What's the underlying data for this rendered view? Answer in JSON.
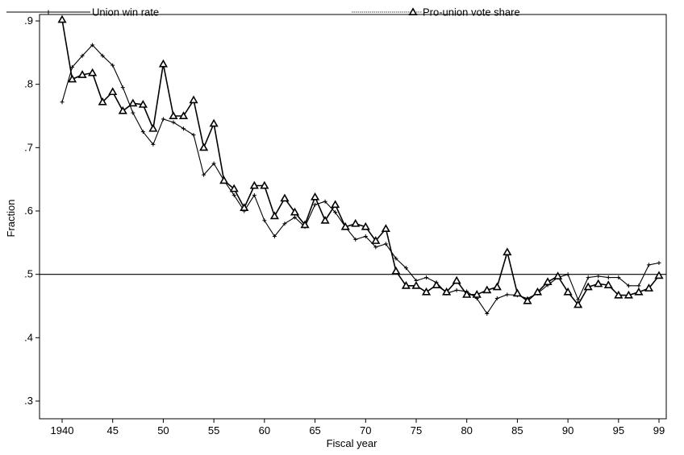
{
  "chart_data": {
    "type": "line",
    "xlabel": "Fiscal year",
    "ylabel": "Fraction",
    "xlim": [
      1940,
      1999
    ],
    "ylim": [
      0.3,
      0.9
    ],
    "x_ticks": [
      {
        "value": 1940,
        "label": "1940"
      },
      {
        "value": 1945,
        "label": "45"
      },
      {
        "value": 1950,
        "label": "50"
      },
      {
        "value": 1955,
        "label": "55"
      },
      {
        "value": 1960,
        "label": "60"
      },
      {
        "value": 1965,
        "label": "65"
      },
      {
        "value": 1970,
        "label": "70"
      },
      {
        "value": 1975,
        "label": "75"
      },
      {
        "value": 1980,
        "label": "80"
      },
      {
        "value": 1985,
        "label": "85"
      },
      {
        "value": 1990,
        "label": "90"
      },
      {
        "value": 1995,
        "label": "95"
      },
      {
        "value": 1999,
        "label": "99"
      }
    ],
    "y_ticks": [
      {
        "value": 0.3,
        "label": ".3"
      },
      {
        "value": 0.4,
        "label": ".4"
      },
      {
        "value": 0.5,
        "label": ".5"
      },
      {
        "value": 0.6,
        "label": ".6"
      },
      {
        "value": 0.7,
        "label": ".7"
      },
      {
        "value": 0.8,
        "label": ".8"
      },
      {
        "value": 0.9,
        "label": ".9"
      }
    ],
    "reference_line": 0.5,
    "legend_position": "top",
    "x": [
      1940,
      1941,
      1942,
      1943,
      1944,
      1945,
      1946,
      1947,
      1948,
      1949,
      1950,
      1951,
      1952,
      1953,
      1954,
      1955,
      1956,
      1957,
      1958,
      1959,
      1960,
      1961,
      1962,
      1963,
      1964,
      1965,
      1966,
      1967,
      1968,
      1969,
      1970,
      1971,
      1972,
      1973,
      1974,
      1975,
      1976,
      1977,
      1978,
      1979,
      1980,
      1981,
      1982,
      1983,
      1984,
      1985,
      1986,
      1987,
      1988,
      1989,
      1990,
      1991,
      1992,
      1993,
      1994,
      1995,
      1996,
      1997,
      1998,
      1999
    ],
    "series": [
      {
        "name": "Union win rate",
        "marker": "plus",
        "values": [
          0.772,
          0.827,
          0.845,
          0.862,
          0.845,
          0.83,
          0.795,
          0.755,
          0.725,
          0.705,
          0.745,
          0.74,
          0.73,
          0.72,
          0.657,
          0.675,
          0.648,
          0.625,
          0.6,
          0.625,
          0.585,
          0.56,
          0.58,
          0.59,
          0.575,
          0.61,
          0.615,
          0.598,
          0.575,
          0.555,
          0.56,
          0.543,
          0.548,
          0.525,
          0.51,
          0.49,
          0.495,
          0.487,
          0.47,
          0.475,
          0.473,
          0.462,
          0.438,
          0.462,
          0.468,
          0.467,
          0.462,
          0.47,
          0.483,
          0.495,
          0.5,
          0.46,
          0.495,
          0.497,
          0.495,
          0.495,
          0.482,
          0.482,
          0.515,
          0.518
        ]
      },
      {
        "name": "Pro-union vote share",
        "marker": "triangle",
        "values": [
          0.902,
          0.808,
          0.815,
          0.818,
          0.772,
          0.788,
          0.758,
          0.77,
          0.768,
          0.73,
          0.832,
          0.75,
          0.75,
          0.775,
          0.7,
          0.738,
          0.648,
          0.635,
          0.605,
          0.64,
          0.64,
          0.592,
          0.62,
          0.598,
          0.578,
          0.622,
          0.585,
          0.61,
          0.575,
          0.58,
          0.575,
          0.553,
          0.572,
          0.505,
          0.482,
          0.482,
          0.472,
          0.483,
          0.472,
          0.49,
          0.468,
          0.468,
          0.475,
          0.48,
          0.535,
          0.47,
          0.458,
          0.472,
          0.488,
          0.497,
          0.472,
          0.452,
          0.48,
          0.485,
          0.483,
          0.467,
          0.467,
          0.472,
          0.478,
          0.498
        ]
      }
    ]
  }
}
